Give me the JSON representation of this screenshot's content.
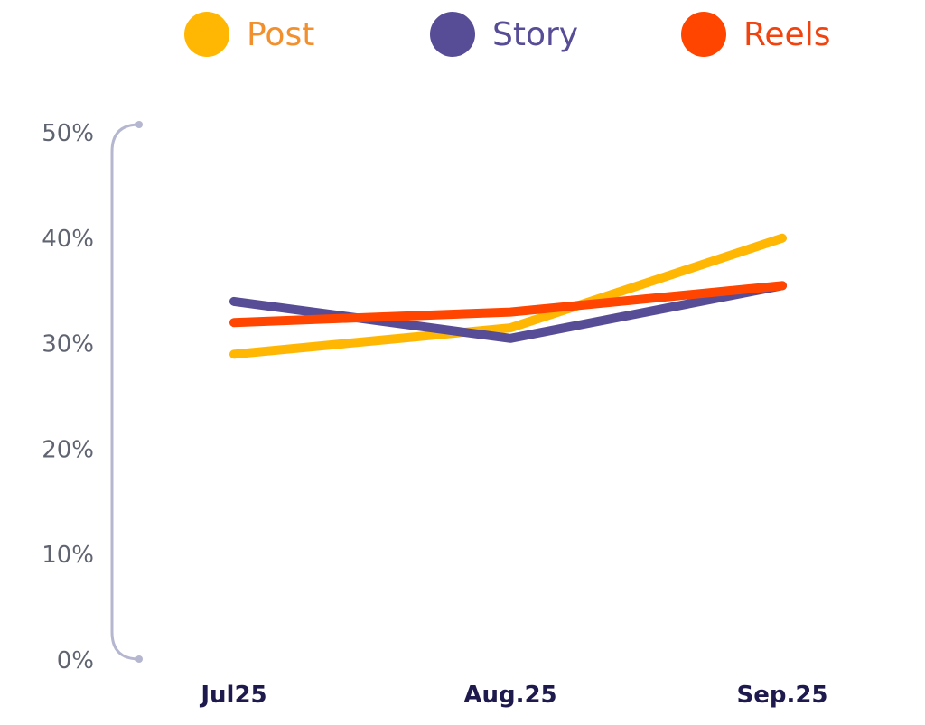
{
  "chart_data": {
    "type": "line",
    "categories": [
      "Jul25",
      "Aug.25",
      "Sep.25"
    ],
    "y_tick_labels": [
      "0%",
      "10%",
      "20%",
      "30%",
      "40%",
      "50%"
    ],
    "ylim": [
      0,
      50
    ],
    "ylabel_unit": "%",
    "grid": false,
    "legend_position": "top",
    "series": [
      {
        "name": "Post",
        "color": "#FFB703",
        "label_color": "#F2902E",
        "values": [
          29,
          31.5,
          40
        ]
      },
      {
        "name": "Story",
        "color": "#574D96",
        "label_color": "#574D96",
        "values": [
          34,
          30.5,
          35.5
        ]
      },
      {
        "name": "Reels",
        "color": "#FF4500",
        "label_color": "#F2430E",
        "values": [
          32,
          33,
          35.5
        ]
      }
    ]
  }
}
